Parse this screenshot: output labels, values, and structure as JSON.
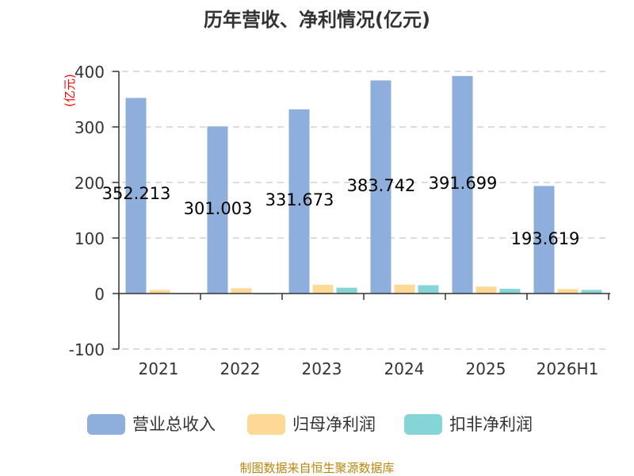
{
  "chart_data": {
    "type": "bar",
    "title": "历年营收、净利情况(亿元)",
    "unit_label": "(亿元)",
    "categories": [
      "2021",
      "2022",
      "2023",
      "2024",
      "2025",
      "2026H1"
    ],
    "series": [
      {
        "name": "营业总收入",
        "color": "#8eaedb",
        "values": [
          352.213,
          301.003,
          331.673,
          383.742,
          391.699,
          193.619
        ]
      },
      {
        "name": "归母净利润",
        "color": "#fdd995",
        "values": [
          6.5,
          9.5,
          15.5,
          16.0,
          12.5,
          8.0
        ]
      },
      {
        "name": "扣非净利润",
        "color": "#85d4d6",
        "values": [
          -1.0,
          -1.5,
          10.5,
          15.0,
          8.5,
          6.5
        ]
      }
    ],
    "data_labels": [
      "352.213",
      "301.003",
      "331.673",
      "383.742",
      "391.699",
      "193.619"
    ],
    "y_ticks": [
      "400",
      "300",
      "200",
      "100",
      "0",
      "-100"
    ],
    "ylim": [
      -100,
      400
    ],
    "grid": true,
    "legend_position": "bottom",
    "source": "制图数据来自恒生聚源数据库"
  }
}
